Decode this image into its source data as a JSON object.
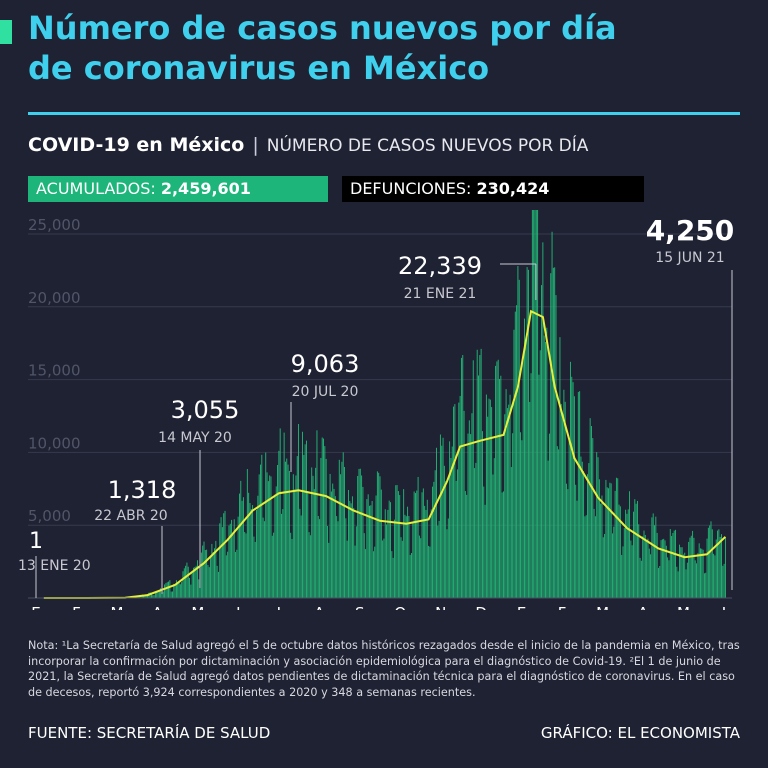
{
  "header": {
    "title_line1": "Número de casos nuevos por día",
    "title_line2": "de coronavirus en México",
    "subtitle_bold": "COVID-19 en México",
    "subtitle_separator": "|",
    "subtitle_rest": "NÚMERO DE CASOS NUEVOS POR DÍA"
  },
  "stats": {
    "acumulados_label": "ACUMULADOS:",
    "acumulados_value": "2,459,601",
    "defunciones_label": "DEFUNCIONES:",
    "defunciones_value": "230,424"
  },
  "colors": {
    "background": "#1f2233",
    "title": "#3fd0ee",
    "bars": "#22b877",
    "curve": "#e6ef3a",
    "acumulados_bg": "#1db57a",
    "defunciones_bg": "#000000"
  },
  "chart_data": {
    "type": "bar",
    "ylim": [
      0,
      25000
    ],
    "yticks": [
      "25,000",
      "20,000",
      "15,000",
      "10,000",
      "5,000"
    ],
    "months": [
      "E",
      "F",
      "M",
      "A",
      "M",
      "J",
      "J",
      "A",
      "S",
      "O",
      "N",
      "D",
      "E",
      "F",
      "M",
      "A",
      "M",
      "J"
    ],
    "series": [
      {
        "name": "Casos nuevos por día",
        "smoothed": [
          {
            "date": "2020-01-13",
            "value": 0
          },
          {
            "date": "2020-02-15",
            "value": 0
          },
          {
            "date": "2020-03-15",
            "value": 20
          },
          {
            "date": "2020-04-01",
            "value": 200
          },
          {
            "date": "2020-04-22",
            "value": 900
          },
          {
            "date": "2020-05-14",
            "value": 2400
          },
          {
            "date": "2020-06-01",
            "value": 4000
          },
          {
            "date": "2020-06-20",
            "value": 6000
          },
          {
            "date": "2020-07-10",
            "value": 7200
          },
          {
            "date": "2020-07-25",
            "value": 7400
          },
          {
            "date": "2020-08-15",
            "value": 7000
          },
          {
            "date": "2020-09-05",
            "value": 6000
          },
          {
            "date": "2020-09-25",
            "value": 5300
          },
          {
            "date": "2020-10-15",
            "value": 5100
          },
          {
            "date": "2020-11-01",
            "value": 5400
          },
          {
            "date": "2020-11-15",
            "value": 8000
          },
          {
            "date": "2020-11-25",
            "value": 10400
          },
          {
            "date": "2020-12-10",
            "value": 10800
          },
          {
            "date": "2020-12-28",
            "value": 11200
          },
          {
            "date": "2021-01-08",
            "value": 14500
          },
          {
            "date": "2021-01-18",
            "value": 19700
          },
          {
            "date": "2021-01-27",
            "value": 19300
          },
          {
            "date": "2021-02-05",
            "value": 14500
          },
          {
            "date": "2021-02-20",
            "value": 9600
          },
          {
            "date": "2021-03-10",
            "value": 6900
          },
          {
            "date": "2021-04-01",
            "value": 4800
          },
          {
            "date": "2021-04-25",
            "value": 3400
          },
          {
            "date": "2021-05-15",
            "value": 2800
          },
          {
            "date": "2021-06-01",
            "value": 3000
          },
          {
            "date": "2021-06-15",
            "value": 4200
          }
        ]
      }
    ],
    "annotations": [
      {
        "value_label": "1",
        "date_label": "13 ENE 20",
        "value": 1,
        "date": "2020-01-13"
      },
      {
        "value_label": "1,318",
        "date_label": "22 ABR 20",
        "value": 1318,
        "date": "2020-04-22"
      },
      {
        "value_label": "3,055",
        "date_label": "14 MAY 20",
        "value": 3055,
        "date": "2020-05-14"
      },
      {
        "value_label": "9,063",
        "date_label": "20 JUL 20",
        "value": 9063,
        "date": "2020-07-20"
      },
      {
        "value_label": "22,339",
        "date_label": "21 ENE 21",
        "value": 22339,
        "date": "2021-01-21"
      },
      {
        "value_label": "4,250",
        "date_label": "15 JUN 21",
        "value": 4250,
        "date": "2021-06-15"
      }
    ]
  },
  "footer": {
    "note": "Nota: ¹La Secretaría de Salud agregó el 5 de octubre datos históricos rezagados desde el inicio de la pandemia en México, tras incorporar la confirmación por dictaminación y asociación epidemiológica para el diagnóstico de Covid-19. ²El 1 de junio de 2021, la Secretaría de Salud agregó datos pendientes de dictaminación técnica para el diagnóstico de coronavirus. En el caso de decesos, reportó 3,924 correspondientes a 2020 y 348 a semanas recientes.",
    "source": "FUENTE: SECRETARÍA DE SALUD",
    "credit": "GRÁFICO: EL ECONOMISTA"
  }
}
